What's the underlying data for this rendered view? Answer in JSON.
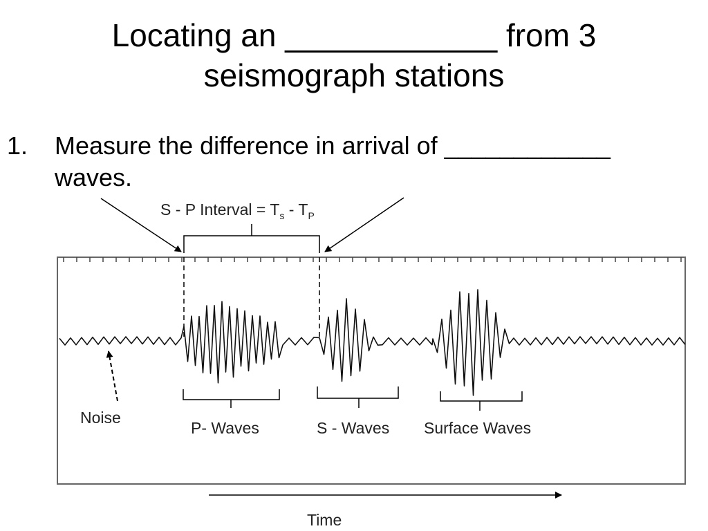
{
  "title": {
    "line1": "Locating an ____________ from 3",
    "line2": "seismograph stations"
  },
  "bullet": {
    "number": "1.",
    "line1": "Measure the difference in arrival of ____________",
    "line2": "waves."
  },
  "diagram": {
    "interval_label_main": "S - P Interval = T",
    "interval_sub_s": "s",
    "interval_minus": " - T",
    "interval_sub_p": "P",
    "noise_label": "Noise",
    "p_waves_label": "P- Waves",
    "s_waves_label": "S - Waves",
    "surface_waves_label": "Surface Waves",
    "time_label": "Time"
  }
}
